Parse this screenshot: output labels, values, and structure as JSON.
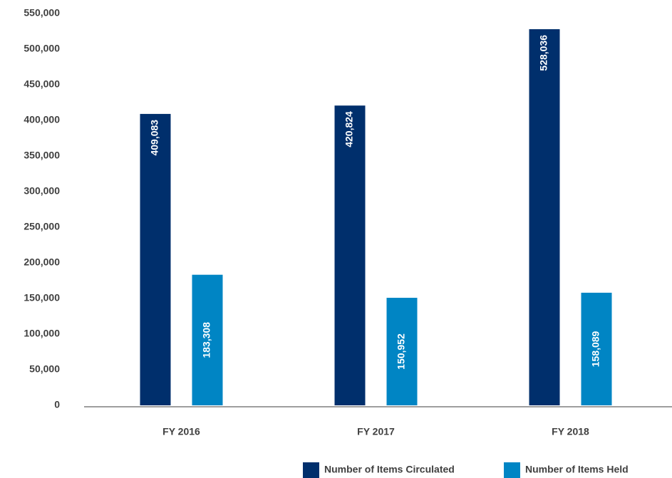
{
  "chart_data": {
    "type": "bar",
    "categories": [
      "FY 2016",
      "FY 2017",
      "FY 2018"
    ],
    "series": [
      {
        "name": "Number of Items Circulated",
        "color": "#002f6c",
        "values": [
          409083,
          420824,
          528036
        ],
        "value_labels": [
          "409,083",
          "420,824",
          "528,036"
        ]
      },
      {
        "name": "Number of Items Held",
        "color": "#0085c4",
        "values": [
          183308,
          150952,
          158089
        ],
        "value_labels": [
          "183,308",
          "150,952",
          "158,089"
        ]
      }
    ],
    "ylim": [
      0,
      550000
    ],
    "yticks": [
      0,
      {
        "value": 50000,
        "label": "50,000"
      },
      {
        "value": 100000,
        "label": "100,000"
      },
      {
        "value": 150000,
        "label": "150,000"
      },
      {
        "value": 200000,
        "label": "200,000"
      },
      {
        "value": 250000,
        "label": "250,000"
      },
      {
        "value": 300000,
        "label": "300,000"
      },
      {
        "value": 350000,
        "label": "350,000"
      },
      {
        "value": 400000,
        "label": "400,000"
      },
      {
        "value": 450000,
        "label": "450,000"
      },
      {
        "value": 500000,
        "label": "500,000"
      },
      {
        "value": 550000,
        "label": "550,000"
      }
    ],
    "grid": false,
    "legend": "bottom-right"
  }
}
